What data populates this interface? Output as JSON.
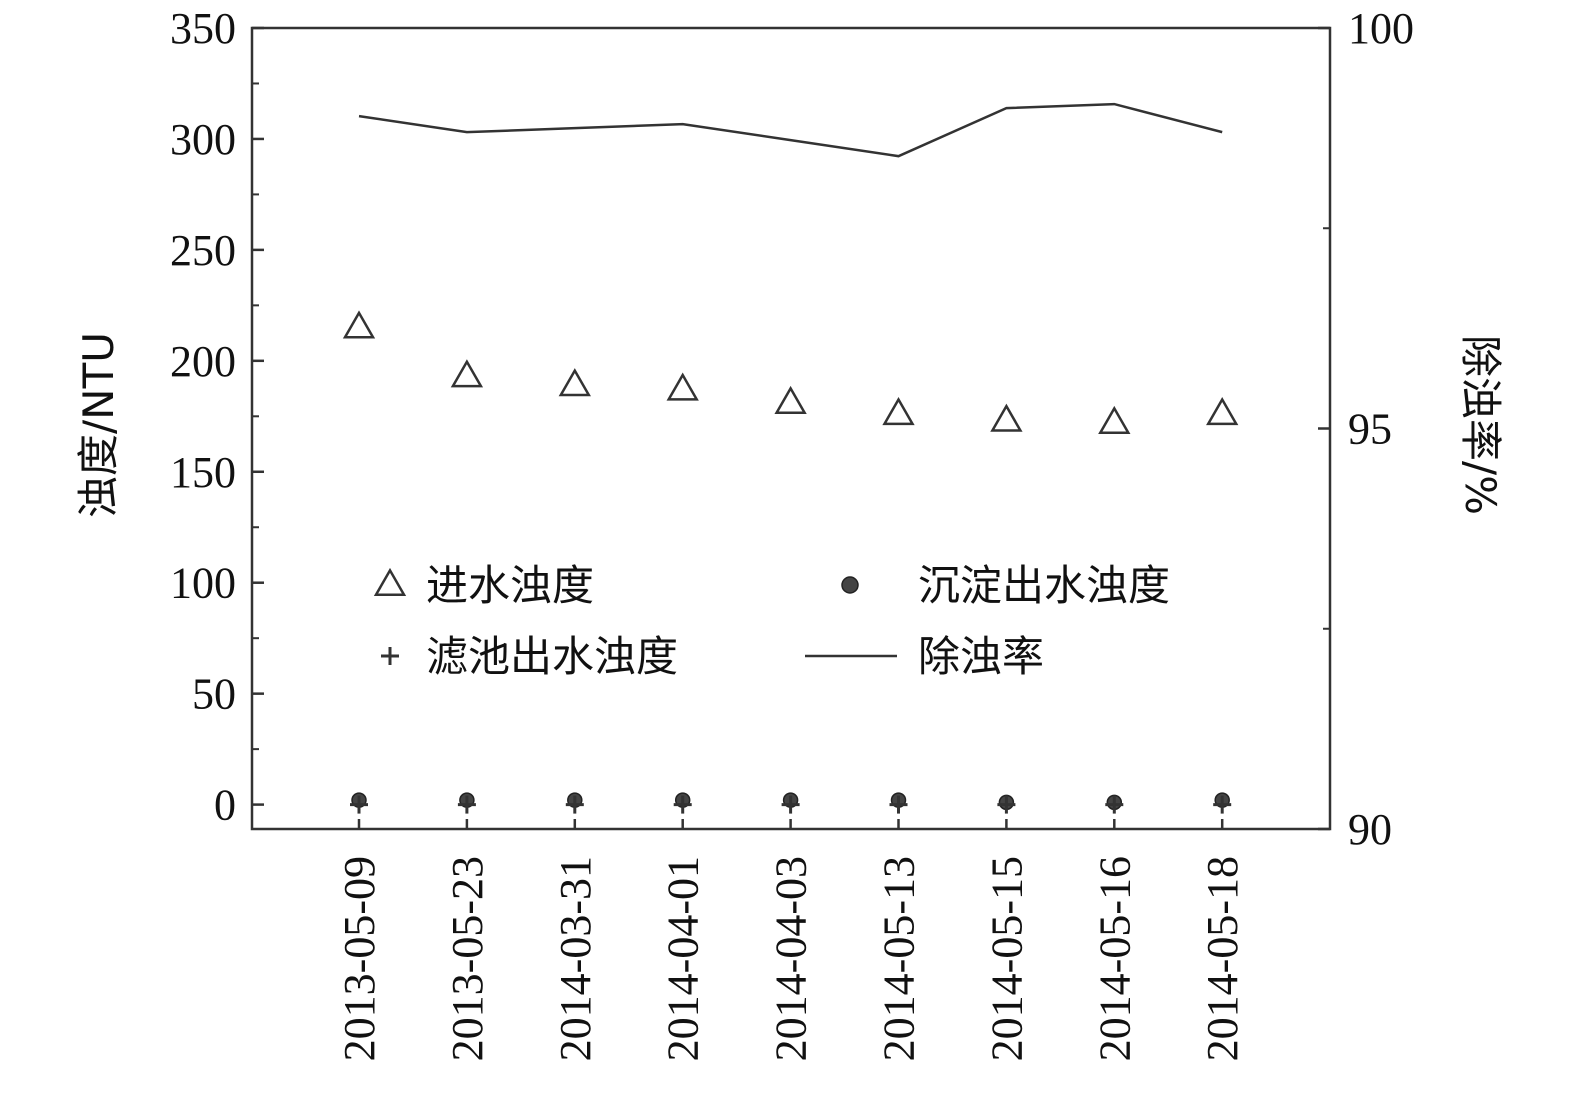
{
  "chart_data": {
    "type": "line",
    "categories": [
      "2013-05-09",
      "2013-05-23",
      "2014-03-31",
      "2014-04-01",
      "2014-04-03",
      "2014-05-13",
      "2014-05-15",
      "2014-05-16",
      "2014-05-18"
    ],
    "y_left": {
      "label": "浊度/NTU",
      "ylim": [
        -11,
        350
      ],
      "ticks": [
        0,
        50,
        100,
        150,
        200,
        250,
        300,
        350
      ]
    },
    "y_right": {
      "label": "除浊率/%",
      "ylim": [
        90,
        100
      ],
      "ticks": [
        90,
        95,
        100
      ]
    },
    "grid": false,
    "legend_placement": "center-left",
    "series": [
      {
        "name": "进水浊度",
        "marker": "triangle-open",
        "axis": "left",
        "values": [
          215,
          193,
          189,
          187,
          181,
          176,
          173,
          172,
          176
        ]
      },
      {
        "name": "沉淀出水浊度",
        "marker": "circle-filled",
        "axis": "left",
        "values": [
          2,
          2,
          2,
          2,
          2,
          2,
          1,
          1,
          2
        ]
      },
      {
        "name": "滤池出水浊度",
        "marker": "plus",
        "axis": "left",
        "values": [
          0,
          0,
          0,
          0,
          0,
          0,
          0,
          0,
          0
        ]
      },
      {
        "name": "除浊率",
        "marker": "line",
        "axis": "right",
        "values": [
          98.9,
          98.7,
          98.75,
          98.8,
          98.6,
          98.4,
          99.0,
          99.05,
          98.7
        ]
      }
    ],
    "colors": {
      "line": "#333333",
      "marker": "#333333",
      "circle_fill": "#444444"
    }
  }
}
